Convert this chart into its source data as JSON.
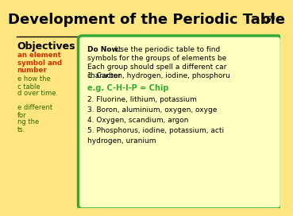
{
  "background_color": "#FFE680",
  "date_text": "07/",
  "title_text": "Development of the Periodic Table",
  "title_color": "#000000",
  "title_fontsize": 13,
  "objectives_header": "Objectives",
  "objectives_header_color": "#000000",
  "objectives_header_fontsize": 9,
  "objectives_lines_red": [
    "an element",
    "symbol and",
    "number"
  ],
  "objectives_lines_green": [
    "e how the",
    "c table",
    "d over time.",
    "",
    "e different",
    "for",
    "ng the",
    "ts."
  ],
  "objectives_red_color": "#CC3300",
  "objectives_green_color": "#336600",
  "box_bg_color": "#FFFFC0",
  "box_border_color": "#33AA33",
  "do_now_bold": "Do Now:",
  "do_now_rest": " Use the periodic table to find",
  "line2": "symbols for the groups of elements be",
  "line3": "Each group should spell a different car",
  "line4": "character",
  "item1": "1. Carbon, hydrogen, iodine, phosphoru",
  "example_green": "e.g. C-H-I-P = Chip",
  "example_color": "#33AA33",
  "item2": "2. Fluorine, lithium, potassium",
  "item3": "3. Boron, aluminium, oxygen, oxyge",
  "item4": "4. Oxygen, scandium, argon",
  "item5": "5. Phosphorus, iodine, potassium, acti",
  "item5b": "hydrogen, uranium",
  "text_fontsize": 6.5,
  "box_text_color": "#000000"
}
